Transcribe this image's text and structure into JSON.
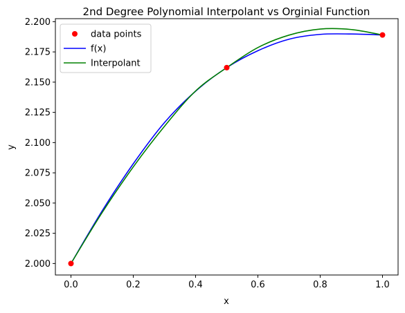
{
  "chart_data": {
    "type": "line",
    "title": "2nd Degree Polynomial Interpolant vs Orginial Function",
    "xlabel": "x",
    "ylabel": "y",
    "xlim": [
      -0.05,
      1.05
    ],
    "ylim": [
      1.9905,
      2.2025
    ],
    "xticks": [
      0.0,
      0.2,
      0.4,
      0.6,
      0.8,
      1.0
    ],
    "xtick_labels": [
      "0.0",
      "0.2",
      "0.4",
      "0.6",
      "0.8",
      "1.0"
    ],
    "yticks": [
      2.0,
      2.025,
      2.05,
      2.075,
      2.1,
      2.125,
      2.15,
      2.175,
      2.2
    ],
    "ytick_labels": [
      "2.000",
      "2.025",
      "2.050",
      "2.075",
      "2.100",
      "2.125",
      "2.150",
      "2.175",
      "2.200"
    ],
    "grid": false,
    "legend_position": "upper-left",
    "series": [
      {
        "name": "data points",
        "kind": "scatter",
        "color": "#ff0000",
        "x": [
          0.0,
          0.5,
          1.0
        ],
        "y": [
          2.0,
          2.162,
          2.189
        ]
      },
      {
        "name": "f(x)",
        "kind": "line",
        "color": "#0000ff",
        "x": [
          0.0,
          0.1,
          0.2,
          0.3,
          0.4,
          0.5,
          0.6,
          0.7,
          0.8,
          0.9,
          1.0
        ],
        "y": [
          2.0,
          2.0435,
          2.0825,
          2.1165,
          2.1425,
          2.162,
          2.176,
          2.1855,
          2.1895,
          2.1898,
          2.189
        ]
      },
      {
        "name": "Interpolant",
        "kind": "line",
        "color": "#008000",
        "x": [
          0.0,
          0.1,
          0.2,
          0.3,
          0.4,
          0.5,
          0.6,
          0.7,
          0.8,
          0.9,
          1.0
        ],
        "y": [
          2.0,
          2.0421,
          2.0799,
          2.1134,
          2.1427,
          2.162,
          2.1786,
          2.1889,
          2.1939,
          2.1935,
          2.189
        ]
      }
    ]
  }
}
